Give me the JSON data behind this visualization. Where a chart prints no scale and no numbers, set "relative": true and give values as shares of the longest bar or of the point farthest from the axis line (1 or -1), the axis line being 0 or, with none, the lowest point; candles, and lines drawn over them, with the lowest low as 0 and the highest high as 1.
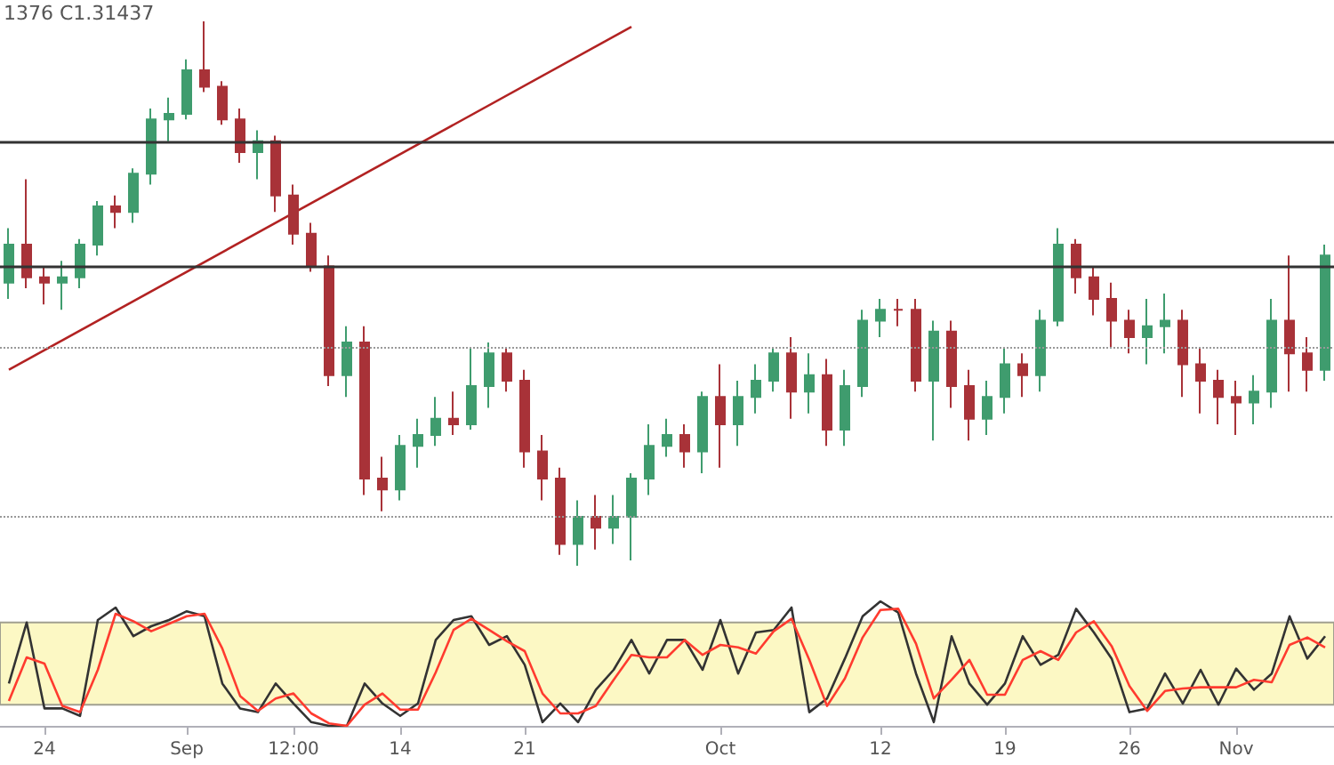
{
  "chart_data": [
    {
      "type": "candlestick",
      "relative": true,
      "tick_labels": false,
      "annotations": [
        "1376 C1.31437"
      ],
      "categories": [
        null,
        null,
        null,
        null,
        null,
        null,
        null,
        null,
        null,
        null,
        null,
        null,
        null,
        null,
        null,
        null,
        null,
        null,
        null,
        null,
        null,
        null,
        null,
        null,
        null,
        null,
        null,
        null,
        null,
        null,
        null,
        null,
        null,
        null,
        null,
        null,
        null,
        null,
        null,
        null,
        null,
        null,
        null,
        null,
        null,
        null,
        null,
        null,
        null,
        null,
        null,
        null,
        null,
        null,
        null,
        null,
        null,
        null,
        null,
        null,
        null,
        null,
        null,
        null,
        null,
        null,
        null,
        null,
        null,
        null,
        null,
        null,
        null,
        null,
        null
      ],
      "ohlc": [
        [
          0.52,
          0.62,
          0.49,
          0.59
        ],
        [
          0.59,
          0.71,
          0.51,
          0.53
        ],
        [
          0.53,
          0.55,
          0.48,
          0.52
        ],
        [
          0.52,
          0.56,
          0.47,
          0.53
        ],
        [
          0.53,
          0.6,
          0.51,
          0.59
        ],
        [
          0.59,
          0.67,
          0.57,
          0.66
        ],
        [
          0.66,
          0.68,
          0.62,
          0.65
        ],
        [
          0.65,
          0.73,
          0.63,
          0.72
        ],
        [
          0.72,
          0.84,
          0.7,
          0.82
        ],
        [
          0.82,
          0.86,
          0.78,
          0.83
        ],
        [
          0.83,
          0.93,
          0.82,
          0.91
        ],
        [
          0.91,
          1.0,
          0.87,
          0.88
        ],
        [
          0.88,
          0.89,
          0.81,
          0.82
        ],
        [
          0.82,
          0.84,
          0.74,
          0.76
        ],
        [
          0.76,
          0.8,
          0.71,
          0.78
        ],
        [
          0.78,
          0.79,
          0.65,
          0.68
        ],
        [
          0.68,
          0.7,
          0.59,
          0.61
        ],
        [
          0.61,
          0.63,
          0.54,
          0.55
        ],
        [
          0.55,
          0.57,
          0.33,
          0.35
        ],
        [
          0.35,
          0.44,
          0.31,
          0.41
        ],
        [
          0.41,
          0.44,
          0.13,
          0.16
        ],
        [
          0.16,
          0.2,
          0.1,
          0.14
        ],
        [
          0.14,
          0.24,
          0.12,
          0.22
        ],
        [
          0.22,
          0.27,
          0.18,
          0.24
        ],
        [
          0.24,
          0.31,
          0.22,
          0.27
        ],
        [
          0.27,
          0.32,
          0.24,
          0.26
        ],
        [
          0.26,
          0.4,
          0.25,
          0.33
        ],
        [
          0.33,
          0.41,
          0.29,
          0.39
        ],
        [
          0.39,
          0.4,
          0.32,
          0.34
        ],
        [
          0.34,
          0.36,
          0.18,
          0.21
        ],
        [
          0.21,
          0.24,
          0.12,
          0.16
        ],
        [
          0.16,
          0.18,
          0.02,
          0.04
        ],
        [
          0.04,
          0.12,
          0.0,
          0.09
        ],
        [
          0.09,
          0.13,
          0.03,
          0.07
        ],
        [
          0.07,
          0.13,
          0.04,
          0.09
        ],
        [
          0.09,
          0.17,
          0.01,
          0.16
        ],
        [
          0.16,
          0.26,
          0.13,
          0.22
        ],
        [
          0.22,
          0.27,
          0.2,
          0.24
        ],
        [
          0.24,
          0.26,
          0.18,
          0.21
        ],
        [
          0.21,
          0.32,
          0.17,
          0.31
        ],
        [
          0.31,
          0.37,
          0.18,
          0.26
        ],
        [
          0.26,
          0.34,
          0.22,
          0.31
        ],
        [
          0.31,
          0.37,
          0.28,
          0.34
        ],
        [
          0.34,
          0.4,
          0.32,
          0.39
        ],
        [
          0.39,
          0.42,
          0.27,
          0.32
        ],
        [
          0.32,
          0.39,
          0.28,
          0.35
        ],
        [
          0.35,
          0.38,
          0.22,
          0.25
        ],
        [
          0.25,
          0.36,
          0.22,
          0.33
        ],
        [
          0.33,
          0.47,
          0.31,
          0.45
        ],
        [
          0.45,
          0.49,
          0.42,
          0.47
        ],
        [
          0.47,
          0.49,
          0.44,
          0.47
        ],
        [
          0.47,
          0.49,
          0.32,
          0.34
        ],
        [
          0.34,
          0.45,
          0.23,
          0.43
        ],
        [
          0.43,
          0.45,
          0.29,
          0.33
        ],
        [
          0.33,
          0.36,
          0.23,
          0.27
        ],
        [
          0.27,
          0.34,
          0.24,
          0.31
        ],
        [
          0.31,
          0.4,
          0.28,
          0.37
        ],
        [
          0.37,
          0.39,
          0.31,
          0.35
        ],
        [
          0.35,
          0.47,
          0.32,
          0.45
        ],
        [
          0.45,
          0.62,
          0.44,
          0.59
        ],
        [
          0.59,
          0.6,
          0.5,
          0.53
        ],
        [
          0.53,
          0.55,
          0.46,
          0.49
        ],
        [
          0.49,
          0.52,
          0.4,
          0.45
        ],
        [
          0.45,
          0.47,
          0.39,
          0.42
        ],
        [
          0.42,
          0.49,
          0.37,
          0.44
        ],
        [
          0.44,
          0.5,
          0.39,
          0.45
        ],
        [
          0.45,
          0.47,
          0.31,
          0.37
        ],
        [
          0.37,
          0.4,
          0.28,
          0.34
        ],
        [
          0.34,
          0.36,
          0.26,
          0.31
        ],
        [
          0.31,
          0.34,
          0.24,
          0.3
        ],
        [
          0.3,
          0.35,
          0.26,
          0.32
        ],
        [
          0.32,
          0.49,
          0.29,
          0.45
        ],
        [
          0.45,
          0.57,
          0.32,
          0.39
        ],
        [
          0.39,
          0.42,
          0.32,
          0.36
        ],
        [
          0.36,
          0.59,
          0.34,
          0.57
        ]
      ],
      "colors": [
        "#3f9c6e",
        "#a83238",
        "#a83238",
        "#3f9c6e",
        "#3f9c6e",
        "#3f9c6e",
        "#a83238",
        "#3f9c6e",
        "#3f9c6e",
        "#3f9c6e",
        "#3f9c6e",
        "#a83238",
        "#a83238",
        "#a83238",
        "#3f9c6e",
        "#a83238",
        "#a83238",
        "#a83238",
        "#a83238",
        "#3f9c6e",
        "#a83238",
        "#a83238",
        "#3f9c6e",
        "#3f9c6e",
        "#3f9c6e",
        "#a83238",
        "#3f9c6e",
        "#3f9c6e",
        "#a83238",
        "#a83238",
        "#a83238",
        "#a83238",
        "#3f9c6e",
        "#a83238",
        "#3f9c6e",
        "#3f9c6e",
        "#3f9c6e",
        "#3f9c6e",
        "#a83238",
        "#3f9c6e",
        "#a83238",
        "#3f9c6e",
        "#3f9c6e",
        "#3f9c6e",
        "#a83238",
        "#3f9c6e",
        "#a83238",
        "#3f9c6e",
        "#3f9c6e",
        "#3f9c6e",
        "#a83238",
        "#a83238",
        "#3f9c6e",
        "#a83238",
        "#a83238",
        "#3f9c6e",
        "#3f9c6e",
        "#a83238",
        "#3f9c6e",
        "#3f9c6e",
        "#a83238",
        "#a83238",
        "#a83238",
        "#a83238",
        "#3f9c6e",
        "#3f9c6e",
        "#a83238",
        "#a83238",
        "#a83238",
        "#a83238",
        "#3f9c6e",
        "#3f9c6e",
        "#a83238",
        "#a83238",
        "#3f9c6e"
      ],
      "ref_lines": [
        {
          "axis": "y",
          "value": 0.78,
          "color": "#333333",
          "line_style": "solid"
        },
        {
          "axis": "y",
          "value": 0.55,
          "color": "#333333",
          "line_style": "solid"
        },
        {
          "axis": "y",
          "value": 0.4,
          "color": "#999999",
          "line_style": "dotted"
        },
        {
          "axis": "y",
          "value": 0.09,
          "color": "#999999",
          "line_style": "dotted"
        }
      ],
      "series": [
        {
          "type": "line",
          "color": "#b22222",
          "values": [
            0.36,
            null,
            null,
            null,
            null,
            null,
            null,
            null,
            null,
            null,
            null,
            null,
            null,
            null,
            null,
            null,
            null,
            null,
            null,
            null,
            null,
            null,
            null,
            null,
            null,
            null,
            null,
            null,
            null,
            null,
            null,
            null,
            null,
            null,
            null,
            0.99,
            null,
            null,
            null,
            null,
            null,
            null,
            null,
            null,
            null,
            null,
            null,
            null,
            null,
            null,
            null,
            null,
            null,
            null,
            null,
            null,
            null,
            null,
            null,
            null,
            null,
            null,
            null,
            null,
            null,
            null,
            null,
            null,
            null,
            null,
            null,
            null,
            null,
            null,
            null
          ]
        }
      ]
    },
    {
      "type": "line",
      "relative": true,
      "tick_labels": "x",
      "categories": [
        null,
        null,
        "24",
        null,
        null,
        null,
        null,
        null,
        null,
        null,
        "Sep",
        null,
        null,
        null,
        null,
        null,
        "12:00",
        null,
        null,
        null,
        null,
        null,
        "14",
        null,
        null,
        null,
        null,
        null,
        null,
        "21",
        null,
        null,
        null,
        null,
        null,
        null,
        null,
        null,
        null,
        null,
        "Oct",
        null,
        null,
        null,
        null,
        null,
        null,
        null,
        null,
        "12",
        null,
        null,
        null,
        null,
        null,
        null,
        "19",
        null,
        null,
        null,
        null,
        null,
        null,
        "26",
        null,
        null,
        null,
        null,
        null,
        "Nov",
        null,
        null,
        null,
        null,
        null
      ],
      "bands": [
        {
          "axis": "y",
          "from": 0.17,
          "to": 0.83,
          "color": "#fcf8c4"
        }
      ],
      "series": [
        {
          "color": "#333333",
          "values": [
            0.34,
            0.83,
            0.14,
            0.14,
            0.08,
            0.85,
            0.95,
            0.72,
            0.8,
            0.85,
            0.92,
            0.88,
            0.34,
            0.14,
            0.11,
            0.34,
            0.18,
            0.03,
            0.0,
            0.0,
            0.34,
            0.18,
            0.08,
            0.18,
            0.69,
            0.85,
            0.88,
            0.65,
            0.72,
            0.49,
            0.03,
            0.18,
            0.03,
            0.29,
            0.45,
            0.69,
            0.42,
            0.69,
            0.69,
            0.45,
            0.85,
            0.42,
            0.75,
            0.77,
            0.95,
            0.11,
            0.22,
            0.54,
            0.88,
            1.0,
            0.91,
            0.42,
            0.03,
            0.72,
            0.34,
            0.17,
            0.34,
            0.72,
            0.49,
            0.57,
            0.94,
            0.75,
            0.54,
            0.11,
            0.14,
            0.42,
            0.18,
            0.45,
            0.17,
            0.46,
            0.29,
            0.42,
            0.88,
            0.54,
            0.72
          ]
        },
        {
          "color": "#ff3b2f",
          "values": [
            0.2,
            0.55,
            0.5,
            0.16,
            0.11,
            0.45,
            0.9,
            0.84,
            0.76,
            0.82,
            0.88,
            0.9,
            0.62,
            0.24,
            0.12,
            0.22,
            0.26,
            0.1,
            0.02,
            0.0,
            0.17,
            0.26,
            0.13,
            0.13,
            0.43,
            0.77,
            0.86,
            0.77,
            0.68,
            0.6,
            0.26,
            0.1,
            0.1,
            0.16,
            0.37,
            0.57,
            0.55,
            0.55,
            0.69,
            0.57,
            0.65,
            0.63,
            0.58,
            0.76,
            0.86,
            0.53,
            0.16,
            0.38,
            0.71,
            0.93,
            0.94,
            0.66,
            0.22,
            0.37,
            0.53,
            0.25,
            0.25,
            0.53,
            0.6,
            0.53,
            0.75,
            0.84,
            0.64,
            0.32,
            0.12,
            0.28,
            0.3,
            0.31,
            0.31,
            0.31,
            0.37,
            0.35,
            0.65,
            0.71,
            0.63
          ]
        }
      ]
    }
  ]
}
